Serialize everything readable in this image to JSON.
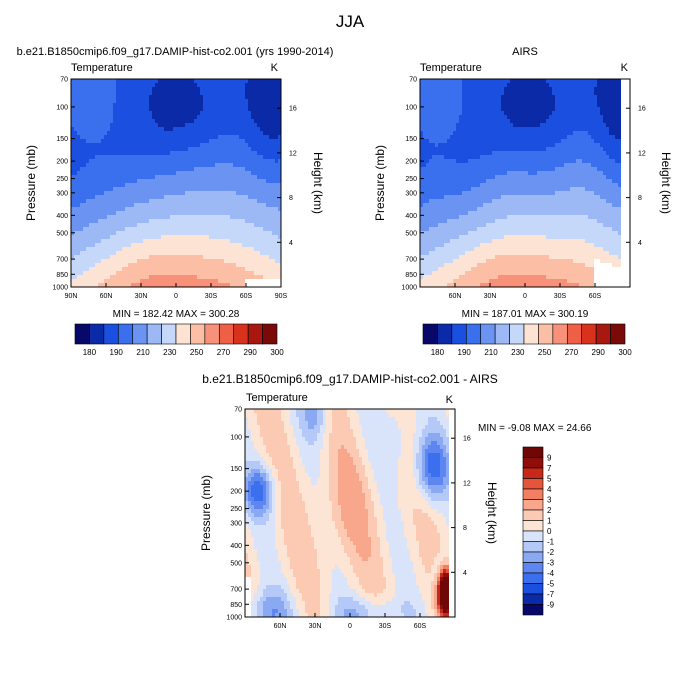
{
  "figure": {
    "title": "JJA"
  },
  "panels": {
    "model": {
      "title": "b.e21.B1850cmip6.f09_g17.DAMIP-hist-co2.001 (yrs 1990-2014)",
      "left_label": "Temperature",
      "right_label": "K",
      "ylabel_left": "Pressure (mb)",
      "ylabel_right": "Height (km)",
      "stats": "MIN = 182.42   MAX = 300.28"
    },
    "obs": {
      "title": "AIRS",
      "left_label": "Temperature",
      "right_label": "K",
      "ylabel_left": "Pressure (mb)",
      "ylabel_right": "Height (km)",
      "stats": "MIN = 187.01   MAX = 300.19"
    },
    "diff": {
      "title": "b.e21.B1850cmip6.f09_g17.DAMIP-hist-co2.001 - AIRS",
      "left_label": "Temperature",
      "right_label": "K",
      "ylabel_left": "Pressure (mb)",
      "ylabel_right": "Height (km)",
      "stats": "MIN =  -9.08   MAX =  24.66"
    }
  },
  "chart_data": [
    {
      "type": "heatmap",
      "panel": "model",
      "title": "b.e21.B1850cmip6.f09_g17.DAMIP-hist-co2.001 (yrs 1990-2014)",
      "ylabel": "Pressure (mb)",
      "ylabel_right": "Height (km)",
      "units": "K",
      "x_ticks": [
        "90N",
        "60N",
        "30N",
        "0",
        "30S",
        "60S",
        "90S"
      ],
      "y_ticks": [
        "70",
        "100",
        "150",
        "200",
        "250",
        "300",
        "400",
        "500",
        "700",
        "850",
        "1000"
      ],
      "y2_ticks": [
        "4",
        "8",
        "12",
        "16"
      ],
      "lat_range": [
        90,
        -90
      ],
      "levels": [
        180,
        190,
        200,
        210,
        220,
        230,
        240,
        250,
        260,
        270,
        280,
        290,
        300
      ],
      "colorbar_labels": [
        "180",
        "190",
        "210",
        "230",
        "250",
        "270",
        "290",
        "300"
      ],
      "min": 182.42,
      "max": 300.28
    },
    {
      "type": "heatmap",
      "panel": "obs",
      "title": "AIRS",
      "ylabel": "Pressure (mb)",
      "ylabel_right": "Height (km)",
      "units": "K",
      "x_ticks": [
        "60N",
        "30N",
        "0",
        "30S",
        "60S"
      ],
      "y_ticks": [
        "70",
        "100",
        "150",
        "200",
        "250",
        "300",
        "400",
        "500",
        "700",
        "850",
        "1000"
      ],
      "y2_ticks": [
        "4",
        "8",
        "12",
        "16"
      ],
      "lat_range": [
        90,
        -90
      ],
      "levels": [
        180,
        190,
        200,
        210,
        220,
        230,
        240,
        250,
        260,
        270,
        280,
        290,
        300
      ],
      "colorbar_labels": [
        "180",
        "190",
        "210",
        "230",
        "250",
        "270",
        "290",
        "300"
      ],
      "min": 187.01,
      "max": 300.19
    },
    {
      "type": "heatmap",
      "panel": "diff",
      "title": "b.e21.B1850cmip6.f09_g17.DAMIP-hist-co2.001 - AIRS",
      "ylabel": "Pressure (mb)",
      "ylabel_right": "Height (km)",
      "units": "K",
      "x_ticks": [
        "60N",
        "30N",
        "0",
        "30S",
        "60S"
      ],
      "y_ticks": [
        "70",
        "100",
        "150",
        "200",
        "250",
        "300",
        "400",
        "500",
        "700",
        "850",
        "1000"
      ],
      "y2_ticks": [
        "4",
        "8",
        "12",
        "16"
      ],
      "lat_range": [
        90,
        -90
      ],
      "levels": [
        -9,
        -7,
        -5,
        -4,
        -3,
        -2,
        -1,
        0,
        1,
        2,
        3,
        4,
        5,
        7,
        9
      ],
      "colorbar_labels": [
        "9",
        "7",
        "5",
        "4",
        "3",
        "2",
        "1",
        "0",
        "-1",
        "-2",
        "-3",
        "-4",
        "-5",
        "-7",
        "-9"
      ],
      "min": -9.08,
      "max": 24.66
    }
  ],
  "colors": {
    "temp_scale": [
      "#08086b",
      "#0b2aa8",
      "#1a4fe0",
      "#3a6fee",
      "#6a93f2",
      "#9cb9f6",
      "#c6d8fa",
      "#fde3d3",
      "#fcbfa6",
      "#f7917a",
      "#ef5f46",
      "#d9321c",
      "#a8180f",
      "#7a0a08"
    ],
    "diff_scale": [
      "#08086b",
      "#0b2aa8",
      "#1a4fe0",
      "#3a6fee",
      "#5d86f0",
      "#8aa9f3",
      "#b4c9f7",
      "#d9e4fb",
      "#fde5d6",
      "#fcc9b3",
      "#f8a78c",
      "#f27f62",
      "#e6553a",
      "#c8281a",
      "#8f0e0a",
      "#6e0706"
    ]
  }
}
